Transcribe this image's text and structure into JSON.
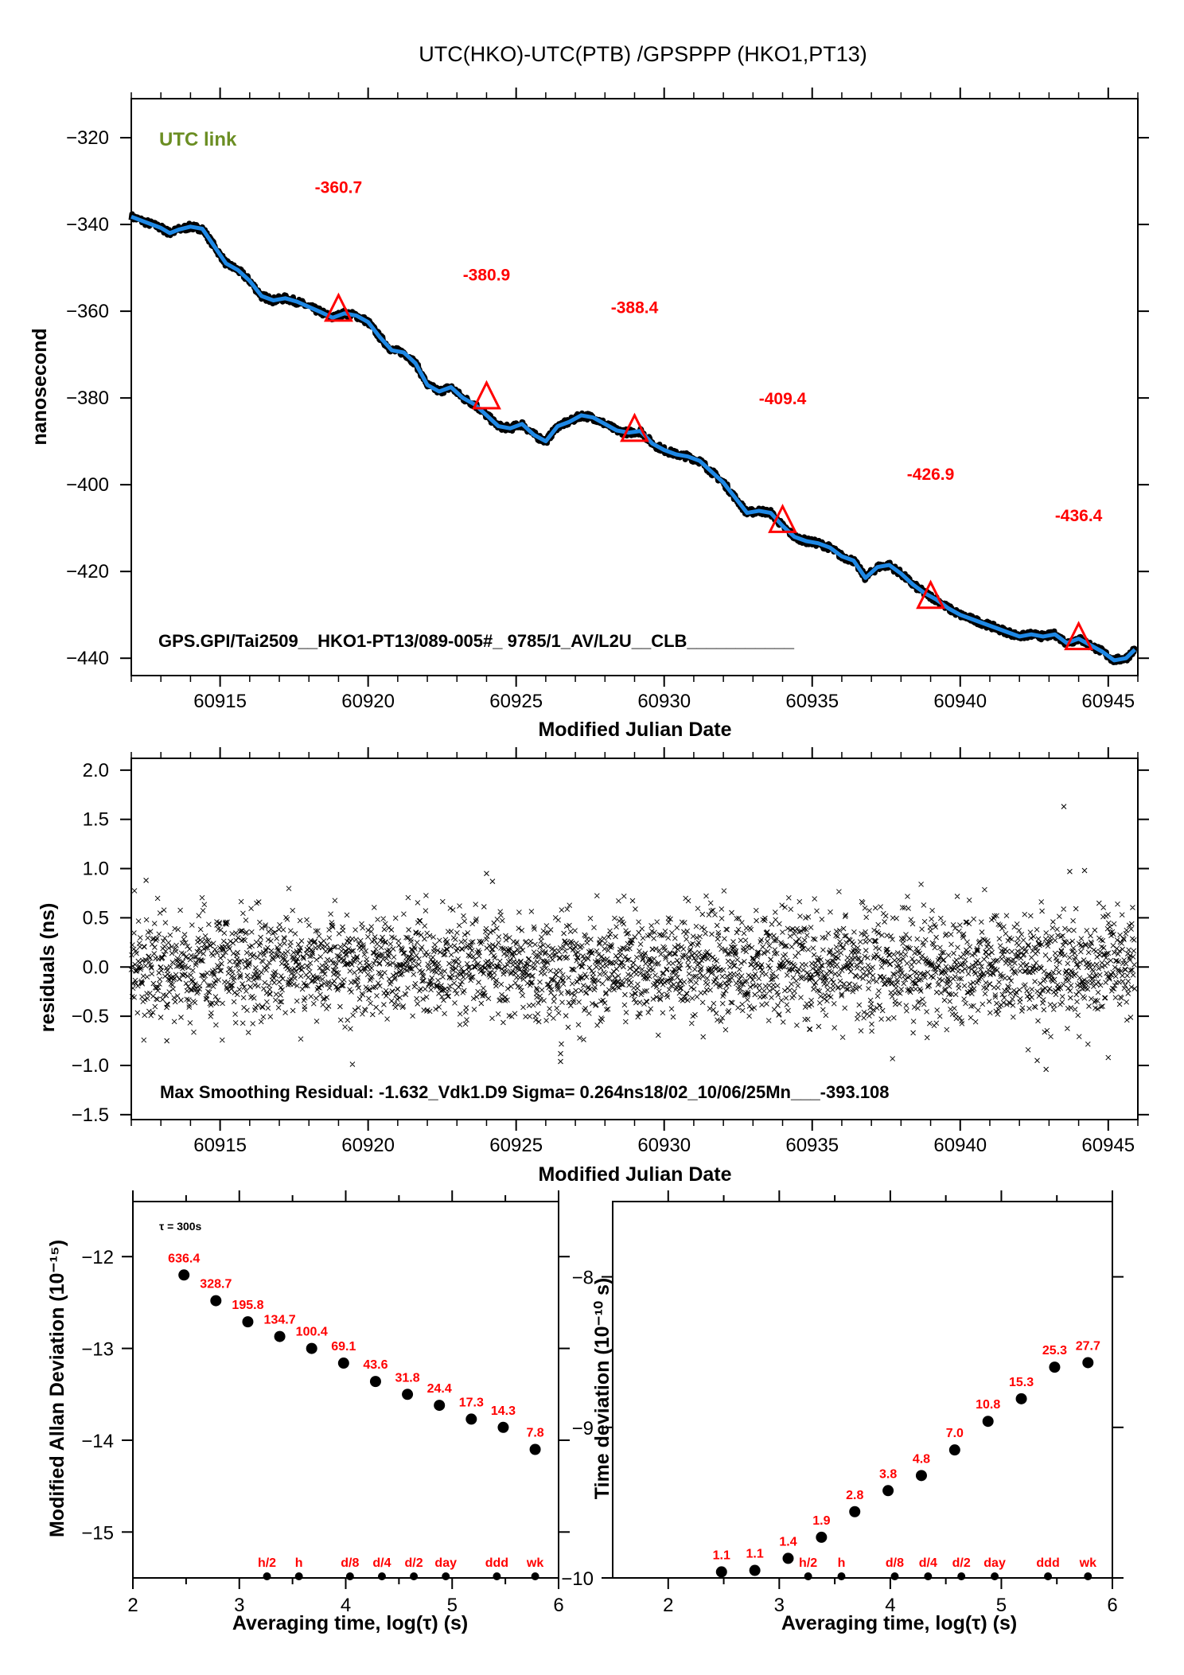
{
  "page_title": "UTC(HKO)-UTC(PTB)  /GPSPPP  (HKO1,PT13)",
  "colors": {
    "smooth_line": "#1e88e5",
    "raw_points": "#000000",
    "annotation": "#ff0000",
    "utc_link": "#6b8e23",
    "markers": "#000000"
  },
  "chart_data": [
    {
      "id": "time-series",
      "type": "line",
      "title": "UTC(HKO)-UTC(PTB)  /GPSPPP  (HKO1,PT13)",
      "xlabel": "Modified Julian Date",
      "ylabel": "nanosecond",
      "xlim": [
        60912,
        60946
      ],
      "ylim": [
        -444,
        -311
      ],
      "xticks": [
        60915,
        60920,
        60925,
        60930,
        60935,
        60940,
        60945
      ],
      "xtick_labels": [
        "60915",
        "60920",
        "60925",
        "60930",
        "60935",
        "60940",
        "60945"
      ],
      "yticks": [
        -320,
        -340,
        -360,
        -380,
        -400,
        -420,
        -440
      ],
      "ytick_labels": [
        "−320",
        "−340",
        "−360",
        "−380",
        "−400",
        "−420",
        "−440"
      ],
      "corner_label": "UTC link",
      "footer_text": "GPS.GPI/Tai2509__HKO1-PT13/089-005#_  9785/1_AV/L2U__CLB___________",
      "series": [
        {
          "name": "UTC(HKO)-UTC(PTB)",
          "x": [
            60912.0,
            60912.5,
            60913.0,
            60913.3,
            60913.6,
            60914.0,
            60914.4,
            60914.8,
            60915.2,
            60915.6,
            60916.0,
            60916.4,
            60916.8,
            60917.2,
            60917.6,
            60918.0,
            60918.4,
            60918.8,
            60919.2,
            60919.6,
            60920.0,
            60920.4,
            60920.8,
            60921.2,
            60921.6,
            60922.0,
            60922.4,
            60922.8,
            60923.2,
            60923.6,
            60924.0,
            60924.4,
            60924.8,
            60925.2,
            60925.6,
            60926.0,
            60926.4,
            60926.8,
            60927.2,
            60927.6,
            60928.0,
            60928.4,
            60928.8,
            60929.2,
            60929.6,
            60930.0,
            60930.4,
            60930.8,
            60931.2,
            60931.6,
            60932.0,
            60932.4,
            60932.8,
            60933.2,
            60933.6,
            60934.0,
            60934.4,
            60934.8,
            60935.2,
            60935.6,
            60936.0,
            60936.4,
            60936.8,
            60937.2,
            60937.6,
            60938.0,
            60938.4,
            60938.8,
            60939.2,
            60939.6,
            60940.0,
            60940.4,
            60940.8,
            60941.2,
            60941.6,
            60942.0,
            60942.4,
            60942.8,
            60943.2,
            60943.6,
            60944.0,
            60944.4,
            60944.8,
            60945.2,
            60945.6,
            60945.9
          ],
          "y": [
            -338.2,
            -339.5,
            -340.8,
            -342.0,
            -341.2,
            -340.5,
            -341.0,
            -345.0,
            -349.0,
            -350.5,
            -353.0,
            -356.5,
            -357.5,
            -357.0,
            -357.8,
            -359.0,
            -360.2,
            -361.5,
            -360.5,
            -361.0,
            -362.5,
            -366.0,
            -369.0,
            -369.5,
            -372.0,
            -377.0,
            -378.5,
            -377.5,
            -380.0,
            -381.5,
            -384.0,
            -386.5,
            -387.0,
            -386.0,
            -388.5,
            -390.0,
            -386.5,
            -385.5,
            -384.0,
            -384.5,
            -386.0,
            -387.5,
            -388.0,
            -387.6,
            -390.5,
            -392.0,
            -393.0,
            -393.5,
            -394.5,
            -397.0,
            -399.5,
            -403.0,
            -406.5,
            -406.0,
            -406.5,
            -409.5,
            -412.0,
            -413.0,
            -413.5,
            -414.5,
            -416.5,
            -417.5,
            -421.5,
            -419.0,
            -418.5,
            -420.5,
            -423.0,
            -425.0,
            -426.5,
            -428.5,
            -430.0,
            -431.0,
            -432.0,
            -433.0,
            -434.0,
            -435.0,
            -434.5,
            -435.0,
            -434.5,
            -436.5,
            -435.5,
            -437.0,
            -438.5,
            -440.5,
            -440.0,
            -438.0
          ]
        }
      ],
      "markers": [
        {
          "x": 60919.0,
          "y": -360.7,
          "label": "-360.7"
        },
        {
          "x": 60924.0,
          "y": -380.9,
          "label": "-380.9"
        },
        {
          "x": 60929.0,
          "y": -388.4,
          "label": "-388.4"
        },
        {
          "x": 60934.0,
          "y": -409.4,
          "label": "-409.4"
        },
        {
          "x": 60939.0,
          "y": -426.9,
          "label": "-426.9"
        },
        {
          "x": 60944.0,
          "y": -436.4,
          "label": "-436.4"
        }
      ]
    },
    {
      "id": "residuals",
      "type": "scatter",
      "xlabel": "Modified Julian Date",
      "ylabel": "residuals (ns)",
      "xlim": [
        60912,
        60946
      ],
      "ylim": [
        -1.55,
        2.12
      ],
      "xticks": [
        60915,
        60920,
        60925,
        60930,
        60935,
        60940,
        60945
      ],
      "xtick_labels": [
        "60915",
        "60920",
        "60925",
        "60930",
        "60935",
        "60940",
        "60945"
      ],
      "yticks": [
        2.0,
        1.5,
        1.0,
        0.5,
        0.0,
        -0.5,
        -1.0,
        -1.5
      ],
      "ytick_labels": [
        "2.0",
        "1.5",
        "1.0",
        "0.5",
        "0.0",
        "−0.5",
        "−1.0",
        "−1.5"
      ],
      "footer_text": "Max Smoothing Residual: -1.632_Vdk1.D9  Sigma= 0.264ns18/02_10/06/25Mn___-393.108",
      "sigma_ns": 0.264,
      "max_residual": -1.632,
      "outliers": [
        {
          "x": 60943.5,
          "y": 1.63
        },
        {
          "x": 60943.7,
          "y": 0.97
        },
        {
          "x": 60944.2,
          "y": 0.98
        },
        {
          "x": 60924.0,
          "y": 0.95
        },
        {
          "x": 60924.2,
          "y": 0.87
        },
        {
          "x": 60926.5,
          "y": -0.88
        },
        {
          "x": 60926.5,
          "y": -0.96
        },
        {
          "x": 60942.6,
          "y": -0.95
        },
        {
          "x": 60942.9,
          "y": -1.04
        },
        {
          "x": 60913.2,
          "y": -0.75
        },
        {
          "x": 60912.5,
          "y": 0.88
        },
        {
          "x": 60945.0,
          "y": -0.92
        }
      ]
    },
    {
      "id": "modified-allan-deviation",
      "type": "scatter",
      "xlabel": "Averaging time, log(τ) (s)",
      "ylabel": "Modified Allan Deviation (10⁻¹⁵)",
      "xlim": [
        2,
        6
      ],
      "ylim": [
        -15.5,
        -11.4
      ],
      "xticks": [
        2,
        3,
        4,
        5,
        6
      ],
      "xtick_labels": [
        "2",
        "3",
        "4",
        "5",
        "6"
      ],
      "yticks": [
        -12,
        -13,
        -14,
        -15
      ],
      "ytick_labels": [
        "−12",
        "−13",
        "−14",
        "−15"
      ],
      "note": "τ = 300s",
      "x": [
        2.48,
        2.78,
        3.08,
        3.38,
        3.68,
        3.98,
        4.28,
        4.58,
        4.88,
        5.18,
        5.48,
        5.78
      ],
      "y": [
        -12.2,
        -12.48,
        -12.71,
        -12.87,
        -13.0,
        -13.16,
        -13.36,
        -13.5,
        -13.62,
        -13.77,
        -13.86,
        -14.1
      ],
      "labels": [
        "636.4",
        "328.7",
        "195.8",
        "134.7",
        "100.4",
        "69.1",
        "43.6",
        "31.8",
        "24.4",
        "17.3",
        "14.3",
        "7.8"
      ],
      "time_markers": [
        {
          "x": 3.26,
          "label": "h/2"
        },
        {
          "x": 3.56,
          "label": "h"
        },
        {
          "x": 4.04,
          "label": "d/8"
        },
        {
          "x": 4.34,
          "label": "d/4"
        },
        {
          "x": 4.64,
          "label": "d/2"
        },
        {
          "x": 4.94,
          "label": "day"
        },
        {
          "x": 5.42,
          "label": "ddd"
        },
        {
          "x": 5.78,
          "label": "wk"
        }
      ]
    },
    {
      "id": "time-deviation",
      "type": "scatter",
      "xlabel": "Averaging time, log(τ) (s)",
      "ylabel": "Time deviation (10⁻¹⁰ s)",
      "xlim": [
        1.5,
        6
      ],
      "ylim": [
        -10.0,
        -7.5
      ],
      "xticks": [
        2,
        3,
        4,
        5,
        6
      ],
      "xtick_labels": [
        "2",
        "3",
        "4",
        "5",
        "6"
      ],
      "yticks": [
        -8,
        -9,
        -10
      ],
      "ytick_labels": [
        "−8",
        "−9",
        "−10"
      ],
      "x": [
        2.48,
        2.78,
        3.08,
        3.38,
        3.68,
        3.98,
        4.28,
        4.58,
        4.88,
        5.18,
        5.48,
        5.78
      ],
      "y": [
        -9.96,
        -9.95,
        -9.87,
        -9.73,
        -9.56,
        -9.42,
        -9.32,
        -9.15,
        -8.96,
        -8.81,
        -8.6,
        -8.57
      ],
      "labels": [
        "1.1",
        "1.1",
        "1.4",
        "1.9",
        "2.8",
        "3.8",
        "4.8",
        "7.0",
        "10.8",
        "15.3",
        "25.3",
        "27.7"
      ],
      "time_markers": [
        {
          "x": 3.26,
          "label": "h/2"
        },
        {
          "x": 3.56,
          "label": "h"
        },
        {
          "x": 4.04,
          "label": "d/8"
        },
        {
          "x": 4.34,
          "label": "d/4"
        },
        {
          "x": 4.64,
          "label": "d/2"
        },
        {
          "x": 4.94,
          "label": "day"
        },
        {
          "x": 5.42,
          "label": "ddd"
        },
        {
          "x": 5.78,
          "label": "wk"
        }
      ]
    }
  ]
}
